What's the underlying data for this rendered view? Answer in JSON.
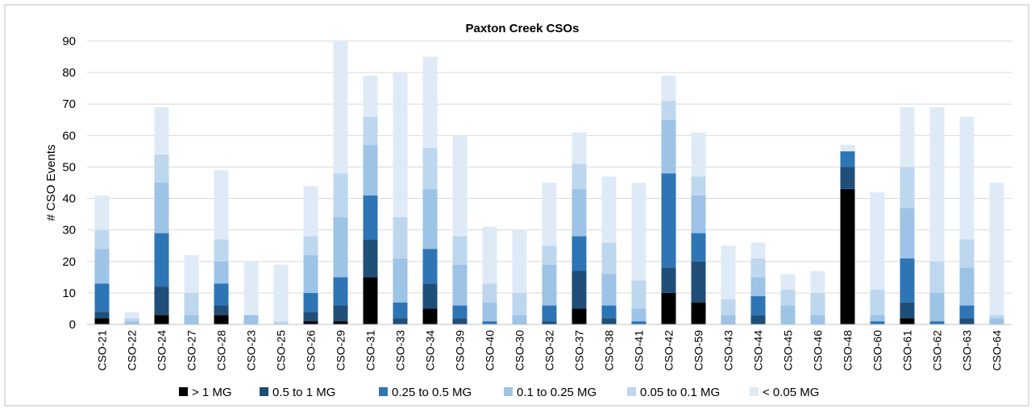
{
  "chart_data": {
    "type": "stacked_bar",
    "title": "Paxton Creek CSOs",
    "y_label": "# CSO Events",
    "categories": [
      "CSO-21",
      "CSO-22",
      "CSO-24",
      "CSO-27",
      "CSO-28",
      "CSO-23",
      "CSO-25",
      "CSO-26",
      "CSO-29",
      "CSO-31",
      "CSO-33",
      "CSO-34",
      "CSO-39",
      "CSO-40",
      "CSO-30",
      "CSO-32",
      "CSO-37",
      "CSO-38",
      "CSO-41",
      "CSO-42",
      "CSO-59",
      "CSO-43",
      "CSO-44",
      "CSO-45",
      "CSO-46",
      "CSO-48",
      "CSO-60",
      "CSO-61",
      "CSO-62",
      "CSO-63",
      "CSO-64"
    ],
    "series": [
      {
        "name": "> 1 MG",
        "color": "#000000",
        "values": [
          2,
          0,
          3,
          0,
          3,
          0,
          0,
          1,
          1,
          15,
          0,
          5,
          0,
          0,
          0,
          0,
          5,
          0,
          0,
          10,
          7,
          0,
          0,
          0,
          0,
          43,
          0,
          2,
          0,
          0,
          0
        ]
      },
      {
        "name": "0.5 to 1 MG",
        "color": "#1f4e79",
        "values": [
          2,
          0,
          9,
          0,
          3,
          0,
          0,
          3,
          5,
          12,
          2,
          8,
          2,
          0,
          0,
          1,
          12,
          2,
          0,
          8,
          13,
          0,
          3,
          0,
          0,
          7,
          0,
          5,
          0,
          2,
          0
        ]
      },
      {
        "name": "0.25 to 0.5 MG",
        "color": "#2e75b6",
        "values": [
          9,
          0,
          17,
          0,
          7,
          0,
          0,
          6,
          9,
          14,
          5,
          11,
          4,
          1,
          0,
          5,
          11,
          4,
          1,
          30,
          9,
          0,
          6,
          0,
          0,
          5,
          1,
          14,
          1,
          4,
          0
        ]
      },
      {
        "name": "0.1 to 0.25 MG",
        "color": "#9dc3e6",
        "values": [
          11,
          1,
          16,
          3,
          7,
          3,
          0,
          12,
          19,
          16,
          14,
          19,
          13,
          6,
          3,
          13,
          15,
          10,
          4,
          17,
          12,
          3,
          6,
          6,
          3,
          0,
          2,
          16,
          9,
          12,
          2
        ]
      },
      {
        "name": "0.05 to 0.1 MG",
        "color": "#bdd7ee",
        "values": [
          6,
          1,
          9,
          7,
          7,
          0,
          1,
          6,
          14,
          9,
          13,
          13,
          9,
          6,
          7,
          6,
          8,
          10,
          9,
          6,
          6,
          5,
          6,
          5,
          7,
          0,
          8,
          13,
          10,
          9,
          1
        ]
      },
      {
        "name": "< 0.05 MG",
        "color": "#deebf7",
        "values": [
          11,
          2,
          15,
          12,
          22,
          17,
          18,
          16,
          42,
          13,
          46,
          29,
          32,
          18,
          20,
          20,
          10,
          21,
          31,
          8,
          14,
          17,
          5,
          5,
          7,
          2,
          31,
          19,
          49,
          39,
          42
        ]
      }
    ],
    "ylim": [
      0,
      90
    ],
    "yticks": [
      0,
      10,
      20,
      30,
      40,
      50,
      60,
      70,
      80,
      90
    ],
    "grid": true,
    "legend": "bottom"
  }
}
